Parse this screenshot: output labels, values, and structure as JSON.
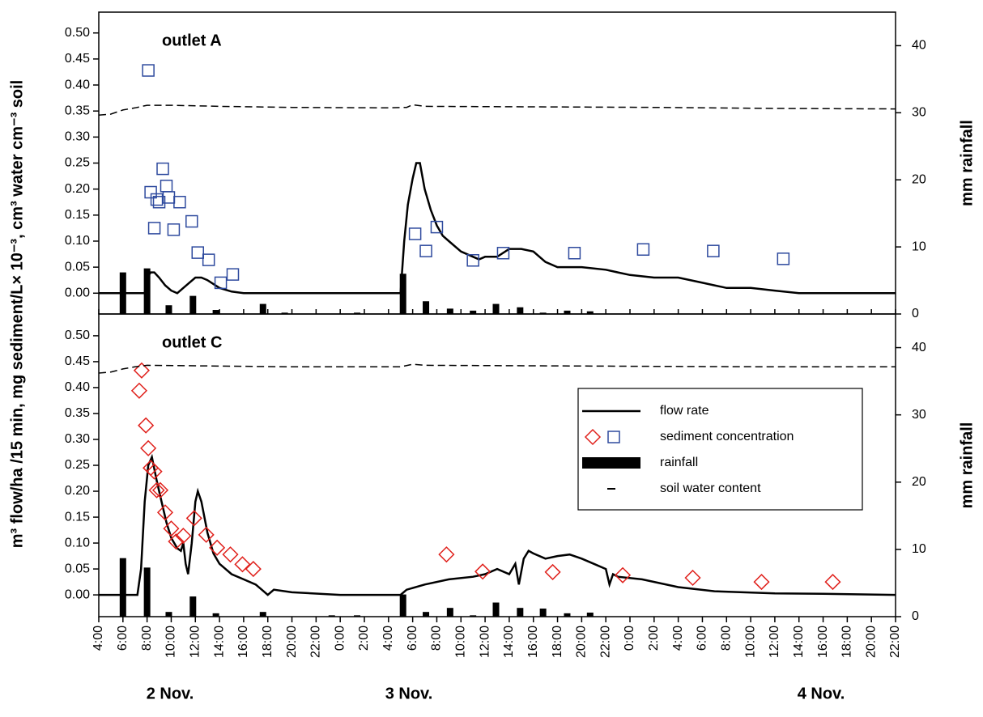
{
  "figure": {
    "ylabel": "m³ flow/ha /15 min, mg sediment/L× 10⁻³, cm³ water cm⁻³ soil",
    "day_labels": [
      "2 Nov.",
      "3 Nov.",
      "4 Nov."
    ],
    "xlim": [
      4,
      70
    ],
    "xticks": [
      {
        "value": 4,
        "label": "4:00"
      },
      {
        "value": 6,
        "label": "6:00"
      },
      {
        "value": 8,
        "label": "8:00"
      },
      {
        "value": 10,
        "label": "10:00"
      },
      {
        "value": 12,
        "label": "12:00"
      },
      {
        "value": 14,
        "label": "14:00"
      },
      {
        "value": 16,
        "label": "16:00"
      },
      {
        "value": 18,
        "label": "18:00"
      },
      {
        "value": 20,
        "label": "20:00"
      },
      {
        "value": 22,
        "label": "22:00"
      },
      {
        "value": 24,
        "label": "0:00"
      },
      {
        "value": 26,
        "label": "2:00"
      },
      {
        "value": 28,
        "label": "4:00"
      },
      {
        "value": 30,
        "label": "6:00"
      },
      {
        "value": 32,
        "label": "8:00"
      },
      {
        "value": 34,
        "label": "10:00"
      },
      {
        "value": 36,
        "label": "12:00"
      },
      {
        "value": 38,
        "label": "14:00"
      },
      {
        "value": 40,
        "label": "16:00"
      },
      {
        "value": 42,
        "label": "18:00"
      },
      {
        "value": 44,
        "label": "20:00"
      },
      {
        "value": 46,
        "label": "22:00"
      },
      {
        "value": 48,
        "label": "0:00"
      },
      {
        "value": 50,
        "label": "2:00"
      },
      {
        "value": 52,
        "label": "4:00"
      },
      {
        "value": 54,
        "label": "6:00"
      },
      {
        "value": 56,
        "label": "8:00"
      },
      {
        "value": 58,
        "label": "10:00"
      },
      {
        "value": 60,
        "label": "12:00"
      },
      {
        "value": 62,
        "label": "14:00"
      },
      {
        "value": 64,
        "label": "16:00"
      },
      {
        "value": 66,
        "label": "18:00"
      },
      {
        "value": 68,
        "label": "20:00"
      },
      {
        "value": 70,
        "label": "22:00"
      }
    ]
  },
  "chart_data": [
    {
      "type": "combo",
      "title": "outlet A",
      "y2label": "mm rainfall",
      "ylim": [
        -0.04,
        0.54
      ],
      "yticks": [
        {
          "value": 0,
          "label": "0.00"
        },
        {
          "value": 0.05,
          "label": "0.05"
        },
        {
          "value": 0.1,
          "label": "0.10"
        },
        {
          "value": 0.15,
          "label": "0.15"
        },
        {
          "value": 0.2,
          "label": "0.20"
        },
        {
          "value": 0.25,
          "label": "0.25"
        },
        {
          "value": 0.3,
          "label": "0.30"
        },
        {
          "value": 0.35,
          "label": "0.35"
        },
        {
          "value": 0.4,
          "label": "0.40"
        },
        {
          "value": 0.45,
          "label": "0.45"
        },
        {
          "value": 0.5,
          "label": "0.50"
        }
      ],
      "y2lim": [
        0,
        45
      ],
      "y2ticks": [
        0,
        10,
        20,
        30,
        40
      ],
      "series": [
        {
          "type": "line",
          "color": "#000000",
          "x": [
            4,
            6,
            7.8,
            8.0,
            8.3,
            8.6,
            9.0,
            9.5,
            10.0,
            10.5,
            11.0,
            11.5,
            12.0,
            12.5,
            13.0,
            14,
            15,
            16,
            29.0,
            29.3,
            29.6,
            30.0,
            30.3,
            30.6,
            31,
            31.5,
            32,
            32.5,
            33,
            34,
            35,
            35.5,
            36,
            37,
            38,
            39,
            40,
            41,
            42,
            44,
            46,
            47,
            48,
            50,
            52,
            54,
            55,
            56,
            58,
            60,
            62,
            70
          ],
          "values": [
            0,
            0,
            0,
            0.03,
            0.04,
            0.04,
            0.03,
            0.015,
            0.005,
            0,
            0.01,
            0.02,
            0.03,
            0.03,
            0.025,
            0.01,
            0.003,
            0,
            0,
            0.1,
            0.17,
            0.22,
            0.25,
            0.25,
            0.2,
            0.16,
            0.13,
            0.11,
            0.1,
            0.08,
            0.07,
            0.065,
            0.07,
            0.07,
            0.085,
            0.085,
            0.08,
            0.06,
            0.05,
            0.05,
            0.045,
            0.04,
            0.035,
            0.03,
            0.03,
            0.02,
            0.015,
            0.01,
            0.01,
            0.005,
            0,
            0
          ]
        },
        {
          "type": "scatter",
          "marker": "square",
          "color": "#2e4a9e",
          "x": [
            8.1,
            8.3,
            8.8,
            9.0,
            8.6,
            9.3,
            9.6,
            9.8,
            10.7,
            10.2,
            11.7,
            12.2,
            13.1,
            14.1,
            15.1,
            30.2,
            31.1,
            32.0,
            35.0,
            37.5,
            43.4,
            49.1,
            54.9,
            60.7
          ],
          "values": [
            0.428,
            0.194,
            0.18,
            0.175,
            0.125,
            0.239,
            0.206,
            0.184,
            0.175,
            0.122,
            0.138,
            0.078,
            0.064,
            0.02,
            0.036,
            0.114,
            0.081,
            0.127,
            0.063,
            0.077,
            0.077,
            0.084,
            0.081,
            0.066
          ]
        },
        {
          "type": "bar",
          "axis": "y2",
          "color": "#000000",
          "x": [
            6.0,
            8.0,
            9.8,
            11.8,
            13.7,
            17.6,
            19.4,
            25.4,
            29.2,
            31.1,
            33.1,
            35.0,
            36.9,
            38.9,
            40.8,
            42.8,
            44.7
          ],
          "values": [
            6.2,
            6.8,
            1.3,
            2.7,
            0.6,
            1.5,
            0.2,
            0.2,
            6.0,
            1.9,
            0.8,
            0.5,
            1.5,
            1.0,
            0.2,
            0.5,
            0.4
          ]
        },
        {
          "type": "line",
          "dash": true,
          "color": "#000000",
          "x": [
            4,
            5,
            6,
            7,
            8,
            10,
            14,
            20,
            28,
            29.5,
            30,
            31,
            40,
            50,
            60,
            70
          ],
          "values": [
            0.342,
            0.344,
            0.352,
            0.356,
            0.361,
            0.361,
            0.359,
            0.357,
            0.356,
            0.357,
            0.362,
            0.359,
            0.358,
            0.357,
            0.355,
            0.354
          ]
        }
      ]
    },
    {
      "type": "combo",
      "title": "outlet C",
      "y2label": "mm rainfall",
      "legend": "inside-right",
      "ylim": [
        -0.042,
        0.542
      ],
      "yticks": [
        {
          "value": 0,
          "label": "0.00"
        },
        {
          "value": 0.05,
          "label": "0.05"
        },
        {
          "value": 0.1,
          "label": "0.10"
        },
        {
          "value": 0.15,
          "label": "0.15"
        },
        {
          "value": 0.2,
          "label": "0.20"
        },
        {
          "value": 0.25,
          "label": "0.25"
        },
        {
          "value": 0.3,
          "label": "0.30"
        },
        {
          "value": 0.35,
          "label": "0.35"
        },
        {
          "value": 0.4,
          "label": "0.40"
        },
        {
          "value": 0.45,
          "label": "0.45"
        },
        {
          "value": 0.5,
          "label": "0.50"
        }
      ],
      "y2lim": [
        0,
        45
      ],
      "y2ticks": [
        0,
        10,
        20,
        30,
        40
      ],
      "series": [
        {
          "name": "flow rate",
          "type": "line",
          "color": "#000000",
          "x": [
            4,
            7.2,
            7.5,
            7.8,
            8.1,
            8.4,
            8.8,
            9.2,
            9.6,
            10,
            10.5,
            10.8,
            11,
            11.2,
            11.4,
            11.7,
            12,
            12.2,
            12.5,
            13,
            13.5,
            14,
            14.5,
            15,
            16,
            17,
            17.5,
            18,
            18.5,
            20,
            24,
            29,
            29.5,
            31,
            33,
            35,
            36,
            37,
            38,
            38.5,
            38.8,
            39.2,
            39.6,
            40,
            41,
            42,
            43,
            44,
            45,
            46,
            46.3,
            46.6,
            47,
            49,
            52,
            55,
            60,
            64,
            70
          ],
          "values": [
            0,
            0,
            0.05,
            0.18,
            0.25,
            0.266,
            0.22,
            0.18,
            0.14,
            0.11,
            0.09,
            0.085,
            0.1,
            0.06,
            0.04,
            0.1,
            0.18,
            0.2,
            0.18,
            0.12,
            0.08,
            0.06,
            0.05,
            0.04,
            0.03,
            0.02,
            0.01,
            0,
            0.01,
            0.005,
            0,
            0,
            0.01,
            0.02,
            0.03,
            0.035,
            0.04,
            0.05,
            0.04,
            0.06,
            0.02,
            0.07,
            0.085,
            0.08,
            0.07,
            0.075,
            0.078,
            0.07,
            0.06,
            0.05,
            0.02,
            0.04,
            0.035,
            0.03,
            0.015,
            0.007,
            0.003,
            0.002,
            0
          ]
        },
        {
          "name": "sediment concentration",
          "type": "scatter",
          "marker": "diamond",
          "color": "#e0201b",
          "x": [
            7.35,
            7.55,
            7.9,
            8.1,
            8.3,
            8.6,
            8.8,
            9.1,
            9.5,
            10.0,
            10.4,
            11.0,
            11.9,
            12.9,
            13.8,
            14.9,
            15.9,
            16.8,
            32.8,
            35.8,
            41.6,
            47.4,
            53.2,
            58.9,
            64.8
          ],
          "values": [
            0.394,
            0.433,
            0.327,
            0.283,
            0.245,
            0.238,
            0.202,
            0.202,
            0.159,
            0.128,
            0.103,
            0.114,
            0.148,
            0.116,
            0.091,
            0.078,
            0.059,
            0.05,
            0.078,
            0.045,
            0.044,
            0.038,
            0.033,
            0.025,
            0.025
          ]
        },
        {
          "name": "rainfall",
          "type": "bar",
          "axis": "y2",
          "color": "#000000",
          "x": [
            6.0,
            8.0,
            9.8,
            11.8,
            13.7,
            17.6,
            23.3,
            25.4,
            29.2,
            31.1,
            33.1,
            35.0,
            36.9,
            38.9,
            40.8,
            42.8,
            44.7
          ],
          "values": [
            8.7,
            7.3,
            0.7,
            3.0,
            0.5,
            0.7,
            0.2,
            0.2,
            3.3,
            0.7,
            1.3,
            0.2,
            2.1,
            1.3,
            1.2,
            0.5,
            0.6
          ]
        },
        {
          "name": "soil water content",
          "type": "line",
          "dash": true,
          "color": "#000000",
          "x": [
            4,
            5,
            6,
            7,
            8,
            12,
            20,
            29,
            30,
            31,
            40,
            50,
            60,
            70
          ],
          "values": [
            0.428,
            0.43,
            0.436,
            0.44,
            0.443,
            0.442,
            0.44,
            0.44,
            0.445,
            0.443,
            0.442,
            0.441,
            0.44,
            0.44
          ]
        }
      ]
    }
  ]
}
